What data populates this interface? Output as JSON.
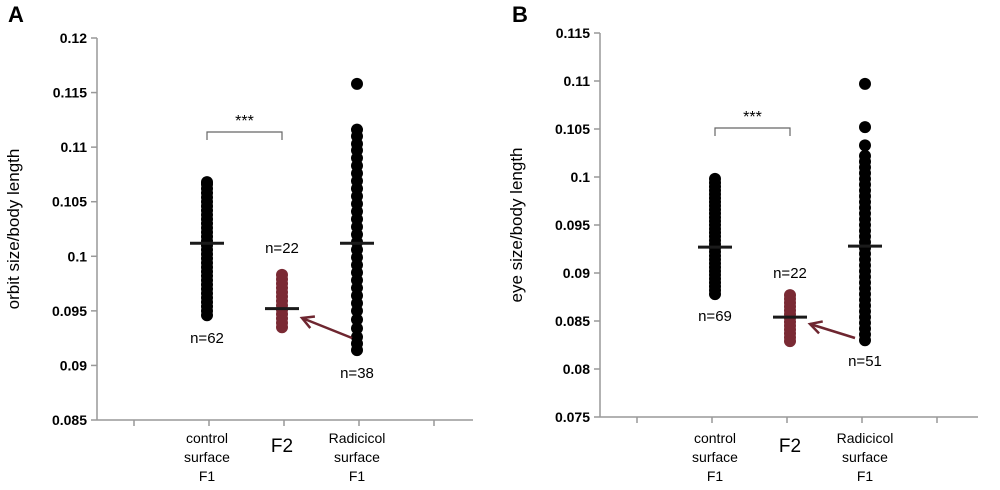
{
  "chart_data": [
    {
      "type": "scatter",
      "panel": "A",
      "ylabel": "orbit size/body length",
      "ylim": [
        0.085,
        0.12
      ],
      "yticks": [
        "0.085",
        "0.09",
        "0.095",
        "0.1",
        "0.105",
        "0.11",
        "0.115",
        "0.12"
      ],
      "categories": [
        {
          "label": [
            "control",
            "surface",
            "F1"
          ]
        },
        {
          "label": [
            "F2"
          ]
        },
        {
          "label": [
            "Radicicol",
            "surface",
            "F1"
          ]
        }
      ],
      "series": [
        {
          "category": 0,
          "color": "#000000",
          "mean": 0.1012,
          "n_label": "n=62",
          "values": [
            0.0946,
            0.095,
            0.0954,
            0.0958,
            0.0962,
            0.0966,
            0.097,
            0.0974,
            0.0978,
            0.0982,
            0.0986,
            0.099,
            0.0994,
            0.0998,
            0.1002,
            0.1006,
            0.101,
            0.1014,
            0.1018,
            0.1022,
            0.1026,
            0.103,
            0.1034,
            0.1038,
            0.1042,
            0.1046,
            0.105,
            0.1054,
            0.1058,
            0.1062,
            0.1066,
            0.1068
          ]
        },
        {
          "category": 1,
          "color": "#7a2a34",
          "mean": 0.0952,
          "n_label": "n=22",
          "values": [
            0.0935,
            0.0939,
            0.0943,
            0.0947,
            0.0951,
            0.0955,
            0.0959,
            0.0963,
            0.0967,
            0.0971,
            0.0975,
            0.0979,
            0.0983
          ]
        },
        {
          "category": 2,
          "color": "#000000",
          "mean": 0.1012,
          "n_label": "n=38",
          "values": [
            0.0914,
            0.092,
            0.0926,
            0.0934,
            0.0942,
            0.095,
            0.0957,
            0.0964,
            0.0971,
            0.0978,
            0.0985,
            0.0992,
            0.0999,
            0.1006,
            0.1013,
            0.102,
            0.1027,
            0.1034,
            0.1041,
            0.1048,
            0.1055,
            0.1062,
            0.1069,
            0.1076,
            0.1083,
            0.109,
            0.1097,
            0.1103,
            0.111,
            0.1116,
            0.1158
          ]
        }
      ],
      "significance": {
        "label": "***",
        "between": [
          0,
          1
        ]
      }
    },
    {
      "type": "scatter",
      "panel": "B",
      "ylabel": "eye size/body length",
      "ylim": [
        0.075,
        0.115
      ],
      "yticks": [
        "0.075",
        "0.08",
        "0.085",
        "0.09",
        "0.095",
        "0.1",
        "0.105",
        "0.11",
        "0.115"
      ],
      "categories": [
        {
          "label": [
            "control",
            "surface",
            "F1"
          ]
        },
        {
          "label": [
            "F2"
          ]
        },
        {
          "label": [
            "Radicicol",
            "surface",
            "F1"
          ]
        }
      ],
      "series": [
        {
          "category": 0,
          "color": "#000000",
          "mean": 0.0927,
          "n_label": "n=69",
          "values": [
            0.0878,
            0.0882,
            0.0886,
            0.089,
            0.0894,
            0.0898,
            0.0902,
            0.0906,
            0.091,
            0.0914,
            0.0918,
            0.0922,
            0.0926,
            0.093,
            0.0934,
            0.0938,
            0.0942,
            0.0946,
            0.095,
            0.0954,
            0.0958,
            0.0962,
            0.0966,
            0.097,
            0.0974,
            0.0978,
            0.0982,
            0.0986,
            0.099,
            0.0994,
            0.0998
          ]
        },
        {
          "category": 1,
          "color": "#7a2a34",
          "mean": 0.0854,
          "n_label": "n=22",
          "values": [
            0.0829,
            0.0833,
            0.0837,
            0.0841,
            0.0845,
            0.0849,
            0.0853,
            0.0857,
            0.0861,
            0.0865,
            0.0869,
            0.0873,
            0.0877
          ]
        },
        {
          "category": 2,
          "color": "#000000",
          "mean": 0.0928,
          "n_label": "n=51",
          "values": [
            0.083,
            0.0836,
            0.0842,
            0.0848,
            0.0854,
            0.086,
            0.0866,
            0.0872,
            0.0878,
            0.0884,
            0.089,
            0.0896,
            0.0902,
            0.0908,
            0.0914,
            0.092,
            0.0926,
            0.0932,
            0.0938,
            0.0944,
            0.095,
            0.0956,
            0.0962,
            0.0968,
            0.0974,
            0.098,
            0.0986,
            0.0992,
            0.0998,
            0.1004,
            0.101,
            0.1016,
            0.1022,
            0.1033,
            0.1052,
            0.1097
          ]
        }
      ],
      "significance": {
        "label": "***",
        "between": [
          0,
          1
        ]
      }
    }
  ]
}
